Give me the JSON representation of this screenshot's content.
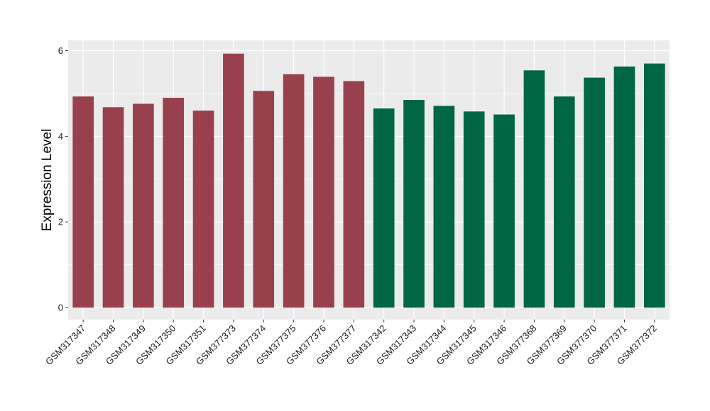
{
  "chart_data": {
    "type": "bar",
    "title": "",
    "xlabel": "",
    "ylabel": "Expression Level",
    "ylim": [
      -0.28,
      6.24
    ],
    "yticks": [
      0,
      2,
      4,
      6
    ],
    "grid": true,
    "legend": "none",
    "categories": [
      "GSM317347",
      "GSM317348",
      "GSM317349",
      "GSM317350",
      "GSM317351",
      "GSM377373",
      "GSM377374",
      "GSM377375",
      "GSM377376",
      "GSM377377",
      "GSM317342",
      "GSM317343",
      "GSM317344",
      "GSM317345",
      "GSM317346",
      "GSM377368",
      "GSM377369",
      "GSM377370",
      "GSM377371",
      "GSM377372"
    ],
    "values": [
      4.93,
      4.68,
      4.76,
      4.9,
      4.6,
      5.93,
      5.06,
      5.45,
      5.39,
      5.29,
      4.65,
      4.85,
      4.71,
      4.58,
      4.51,
      5.54,
      4.93,
      5.37,
      5.63,
      5.7
    ],
    "groups": [
      0,
      0,
      0,
      0,
      0,
      0,
      0,
      0,
      0,
      0,
      1,
      1,
      1,
      1,
      1,
      1,
      1,
      1,
      1,
      1
    ],
    "group_colors": [
      "#99404D",
      "#006644"
    ],
    "panel_background": "#EBEBEB",
    "grid_color": "#FFFFFF"
  }
}
